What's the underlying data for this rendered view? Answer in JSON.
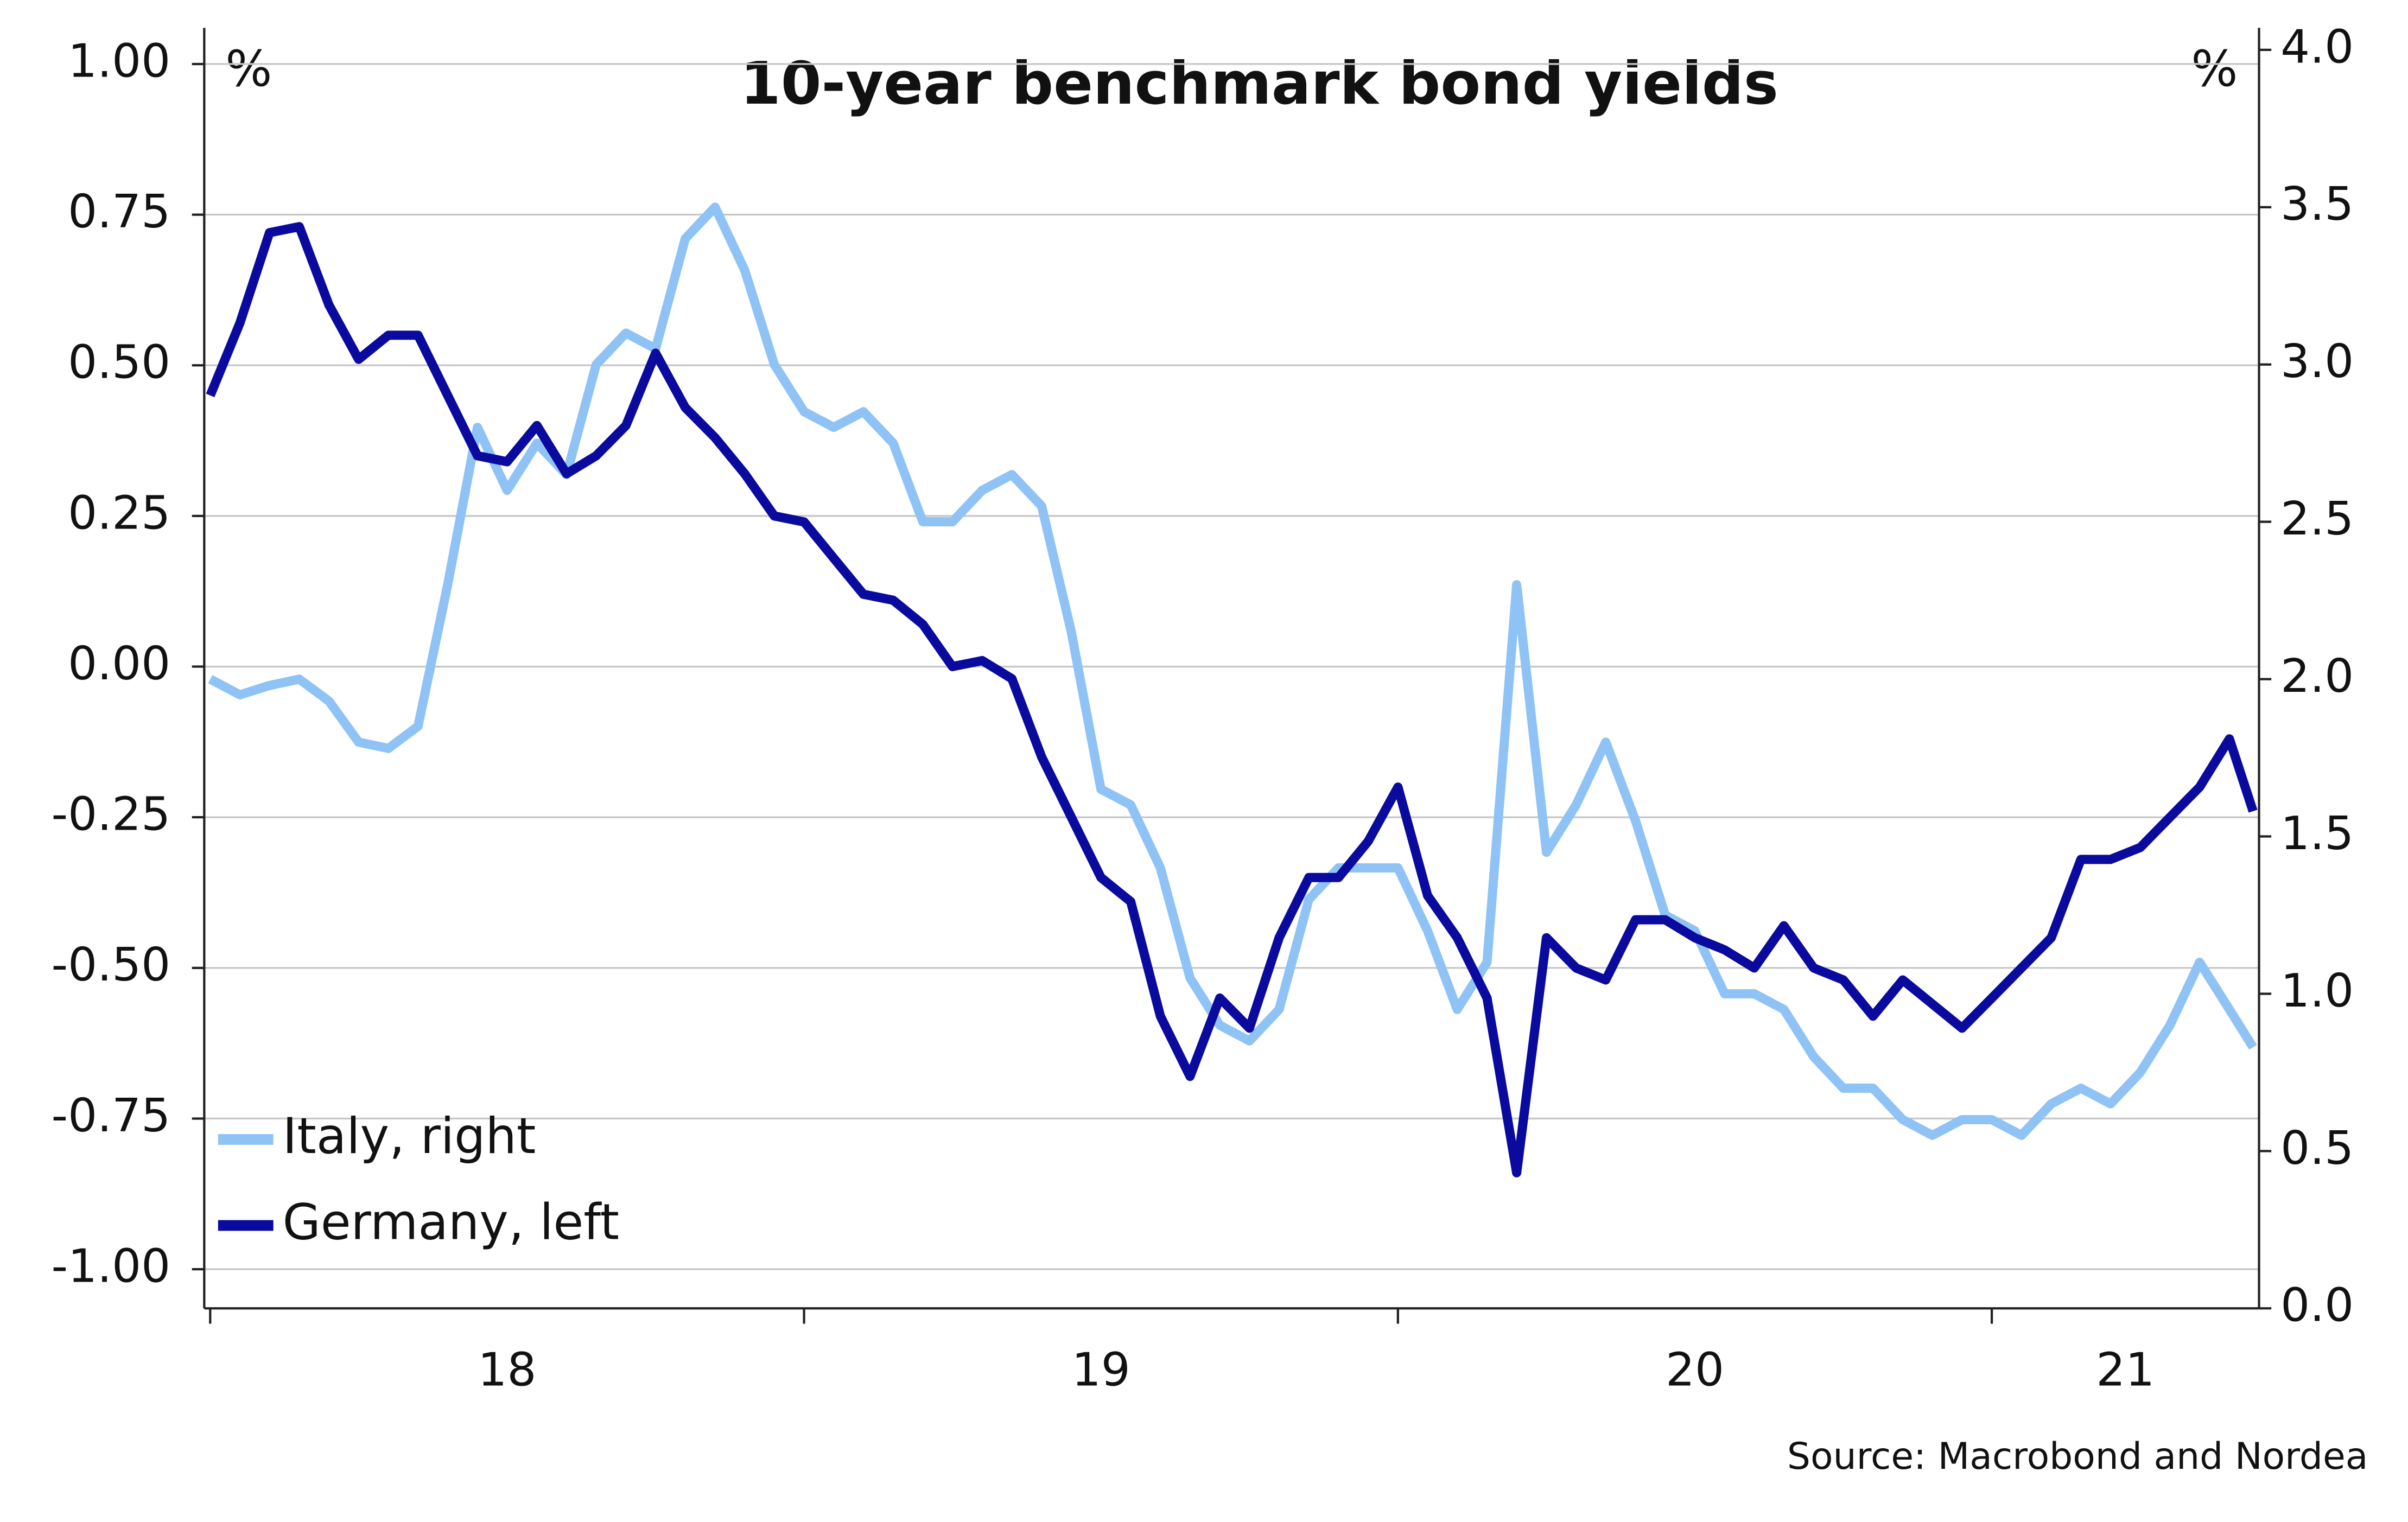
{
  "chart_data": {
    "type": "line",
    "title": "10-year benchmark bond yields",
    "y_unit": "%",
    "y2_unit": "%",
    "source": "Source: Macrobond and Nordea",
    "x": [
      2018.0,
      2018.05,
      2018.1,
      2018.15,
      2018.2,
      2018.25,
      2018.3,
      2018.35,
      2018.4,
      2018.45,
      2018.5,
      2018.55,
      2018.6,
      2018.65,
      2018.7,
      2018.75,
      2018.8,
      2018.85,
      2018.9,
      2018.95,
      2019.0,
      2019.05,
      2019.1,
      2019.15,
      2019.2,
      2019.25,
      2019.3,
      2019.35,
      2019.4,
      2019.45,
      2019.5,
      2019.55,
      2019.6,
      2019.65,
      2019.7,
      2019.75,
      2019.8,
      2019.85,
      2019.9,
      2019.95,
      2020.0,
      2020.05,
      2020.1,
      2020.15,
      2020.2,
      2020.25,
      2020.3,
      2020.35,
      2020.4,
      2020.45,
      2020.5,
      2020.55,
      2020.6,
      2020.65,
      2020.7,
      2020.75,
      2020.8,
      2020.85,
      2020.9,
      2020.95,
      2021.0,
      2021.05,
      2021.1,
      2021.15,
      2021.2,
      2021.25,
      2021.3,
      2021.35,
      2021.4,
      2021.44
    ],
    "series": [
      {
        "name": "Italy, right",
        "color": "#8fc3f5",
        "axis": "y2",
        "values": [
          2.0,
          1.95,
          1.98,
          2.0,
          1.93,
          1.8,
          1.78,
          1.85,
          2.3,
          2.8,
          2.6,
          2.75,
          2.65,
          3.0,
          3.1,
          3.05,
          3.4,
          3.5,
          3.3,
          3.0,
          2.85,
          2.8,
          2.85,
          2.75,
          2.5,
          2.5,
          2.6,
          2.65,
          2.55,
          2.15,
          1.65,
          1.6,
          1.4,
          1.05,
          0.9,
          0.85,
          0.95,
          1.3,
          1.4,
          1.4,
          1.4,
          1.2,
          0.95,
          1.1,
          2.3,
          1.45,
          1.6,
          1.8,
          1.55,
          1.25,
          1.2,
          1.0,
          1.0,
          0.95,
          0.8,
          0.7,
          0.7,
          0.6,
          0.55,
          0.6,
          0.6,
          0.55,
          0.65,
          0.7,
          0.65,
          0.75,
          0.9,
          1.1,
          0.95,
          0.83
        ]
      },
      {
        "name": "Germany, left",
        "color": "#0a0a9e",
        "values": [
          0.45,
          0.57,
          0.72,
          0.73,
          0.6,
          0.51,
          0.55,
          0.55,
          0.45,
          0.35,
          0.34,
          0.4,
          0.32,
          0.35,
          0.4,
          0.52,
          0.43,
          0.38,
          0.32,
          0.25,
          0.24,
          0.18,
          0.12,
          0.11,
          0.07,
          0.0,
          0.01,
          -0.02,
          -0.15,
          -0.25,
          -0.35,
          -0.39,
          -0.58,
          -0.68,
          -0.55,
          -0.6,
          -0.45,
          -0.35,
          -0.35,
          -0.29,
          -0.2,
          -0.38,
          -0.45,
          -0.55,
          -0.84,
          -0.45,
          -0.5,
          -0.52,
          -0.42,
          -0.42,
          -0.45,
          -0.47,
          -0.5,
          -0.43,
          -0.5,
          -0.52,
          -0.58,
          -0.52,
          -0.56,
          -0.6,
          -0.55,
          -0.5,
          -0.45,
          -0.32,
          -0.32,
          -0.3,
          -0.25,
          -0.2,
          -0.12,
          -0.24
        ]
      }
    ],
    "xlim": [
      2017.99,
      2021.45
    ],
    "xticks": [
      {
        "value": 2018,
        "label": "18"
      },
      {
        "value": 2019,
        "label": "19"
      },
      {
        "value": 2020,
        "label": "20"
      },
      {
        "value": 2021,
        "label": "21"
      }
    ],
    "ylim": [
      -1.065,
      1.06
    ],
    "yticks": [
      {
        "value": -1,
        "label": "-1.00"
      },
      {
        "value": -0.75,
        "label": "-0.75"
      },
      {
        "value": -0.5,
        "label": "-0.50"
      },
      {
        "value": -0.25,
        "label": "-0.25"
      },
      {
        "value": 0,
        "label": "0.00"
      },
      {
        "value": 0.25,
        "label": "0.25"
      },
      {
        "value": 0.5,
        "label": "0.50"
      },
      {
        "value": 0.75,
        "label": "0.75"
      },
      {
        "value": 1,
        "label": "1.00"
      }
    ],
    "y2lim": [
      0,
      4.07
    ],
    "y2ticks": [
      {
        "value": 0,
        "label": "0.0"
      },
      {
        "value": 0.5,
        "label": "0.5"
      },
      {
        "value": 1,
        "label": "1.0"
      },
      {
        "value": 1.5,
        "label": "1.5"
      },
      {
        "value": 2,
        "label": "2.0"
      },
      {
        "value": 2.5,
        "label": "2.5"
      },
      {
        "value": 3,
        "label": "3.0"
      },
      {
        "value": 3.5,
        "label": "3.5"
      },
      {
        "value": 4,
        "label": "4.0"
      }
    ],
    "grid": true,
    "legend": "lower left"
  }
}
